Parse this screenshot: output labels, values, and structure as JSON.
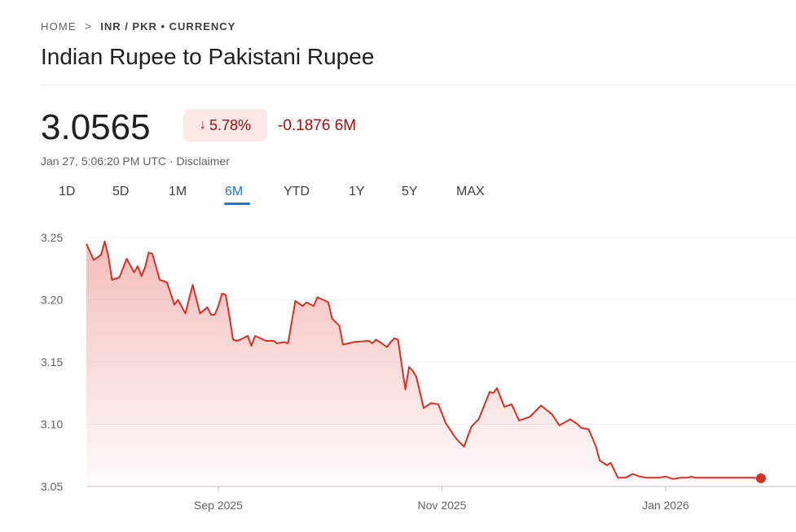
{
  "breadcrumb": {
    "home": "HOME",
    "separator": ">",
    "current": "INR / PKR • CURRENCY"
  },
  "title": "Indian Rupee to Pakistani Rupee",
  "quote": {
    "price": "3.0565",
    "change_percent": "5.78%",
    "change_direction": "down",
    "change_abs": "-0.1876 6M",
    "timestamp": "Jan 27, 5:06:20 PM UTC · Disclaimer"
  },
  "tabs": [
    {
      "label": "1D"
    },
    {
      "label": "5D"
    },
    {
      "label": "1M"
    },
    {
      "label": "6M",
      "active": true
    },
    {
      "label": "YTD"
    },
    {
      "label": "1Y"
    },
    {
      "label": "5Y"
    },
    {
      "label": "MAX"
    }
  ],
  "colors": {
    "line": "#d93025",
    "negative_text": "#a50e0e",
    "badge_bg": "#fce8e6",
    "active_tab": "#1a73e8"
  },
  "chart_data": {
    "type": "area",
    "y_ticks": [
      "3.25",
      "3.20",
      "3.15",
      "3.10",
      "3.05"
    ],
    "ylim": [
      3.05,
      3.25
    ],
    "x_ticks": [
      {
        "label": "Sep 2025",
        "date": "2025-09-01"
      },
      {
        "label": "Nov 2025",
        "date": "2025-11-01"
      },
      {
        "label": "Jan 2026",
        "date": "2026-01-01"
      }
    ],
    "xlim": [
      "2025-07-27",
      "2026-01-27"
    ],
    "grid": "horizontal",
    "series": [
      {
        "x": [
          "2025-07-27",
          "2025-07-29",
          "2025-07-31",
          "2025-08-01",
          "2025-08-02",
          "2025-08-03",
          "2025-08-05",
          "2025-08-07",
          "2025-08-09",
          "2025-08-10",
          "2025-08-11",
          "2025-08-12",
          "2025-08-13",
          "2025-08-14",
          "2025-08-16",
          "2025-08-18",
          "2025-08-20",
          "2025-08-21",
          "2025-08-23",
          "2025-08-25",
          "2025-08-27",
          "2025-08-29",
          "2025-08-30",
          "2025-08-31",
          "2025-09-01",
          "2025-09-02",
          "2025-09-03",
          "2025-09-04",
          "2025-09-05",
          "2025-09-06",
          "2025-09-07",
          "2025-09-09",
          "2025-09-10",
          "2025-09-11",
          "2025-09-14",
          "2025-09-16",
          "2025-09-17",
          "2025-09-19",
          "2025-09-20",
          "2025-09-22",
          "2025-09-24",
          "2025-09-25",
          "2025-09-27",
          "2025-09-28",
          "2025-10-01",
          "2025-10-02",
          "2025-10-04",
          "2025-10-05",
          "2025-10-08",
          "2025-10-12",
          "2025-10-13",
          "2025-10-14",
          "2025-10-17",
          "2025-10-18",
          "2025-10-19",
          "2025-10-20",
          "2025-10-22",
          "2025-10-23",
          "2025-10-24",
          "2025-10-25",
          "2025-10-27",
          "2025-10-29",
          "2025-10-31",
          "2025-11-02",
          "2025-11-04",
          "2025-11-05",
          "2025-11-07",
          "2025-11-09",
          "2025-11-11",
          "2025-11-14",
          "2025-11-15",
          "2025-11-16",
          "2025-11-18",
          "2025-11-20",
          "2025-11-22",
          "2025-11-25",
          "2025-11-28",
          "2025-12-01",
          "2025-12-03",
          "2025-12-06",
          "2025-12-08",
          "2025-12-09",
          "2025-12-11",
          "2025-12-13",
          "2025-12-14",
          "2025-12-16",
          "2025-12-17",
          "2025-12-19",
          "2025-12-21",
          "2025-12-23",
          "2025-12-25",
          "2025-12-27",
          "2025-12-30",
          "2026-01-01",
          "2026-01-03",
          "2026-01-05",
          "2026-01-07",
          "2026-01-08",
          "2026-01-09",
          "2026-01-11",
          "2026-01-13",
          "2026-01-15",
          "2026-01-18",
          "2026-01-20",
          "2026-01-22",
          "2026-01-23",
          "2026-01-25",
          "2026-01-27"
        ],
        "y": [
          3.245,
          3.232,
          3.236,
          3.247,
          3.235,
          3.216,
          3.218,
          3.233,
          3.222,
          3.227,
          3.219,
          3.226,
          3.238,
          3.237,
          3.216,
          3.214,
          3.196,
          3.2,
          3.189,
          3.212,
          3.189,
          3.194,
          3.188,
          3.188,
          3.195,
          3.205,
          3.204,
          3.187,
          3.168,
          3.167,
          3.168,
          3.171,
          3.163,
          3.171,
          3.167,
          3.167,
          3.165,
          3.166,
          3.165,
          3.199,
          3.195,
          3.198,
          3.195,
          3.202,
          3.198,
          3.185,
          3.179,
          3.164,
          3.166,
          3.167,
          3.165,
          3.168,
          3.162,
          3.166,
          3.169,
          3.168,
          3.128,
          3.146,
          3.143,
          3.138,
          3.113,
          3.117,
          3.116,
          3.101,
          3.092,
          3.088,
          3.082,
          3.098,
          3.104,
          3.126,
          3.125,
          3.129,
          3.114,
          3.116,
          3.103,
          3.106,
          3.115,
          3.108,
          3.099,
          3.104,
          3.1,
          3.097,
          3.096,
          3.082,
          3.071,
          3.067,
          3.069,
          3.057,
          3.057,
          3.06,
          3.058,
          3.057,
          3.057,
          3.058,
          3.056,
          3.057,
          3.057,
          3.058,
          3.057,
          3.057,
          3.057,
          3.057,
          3.057,
          3.057,
          3.057,
          3.057,
          3.057,
          3.0565
        ]
      }
    ]
  }
}
